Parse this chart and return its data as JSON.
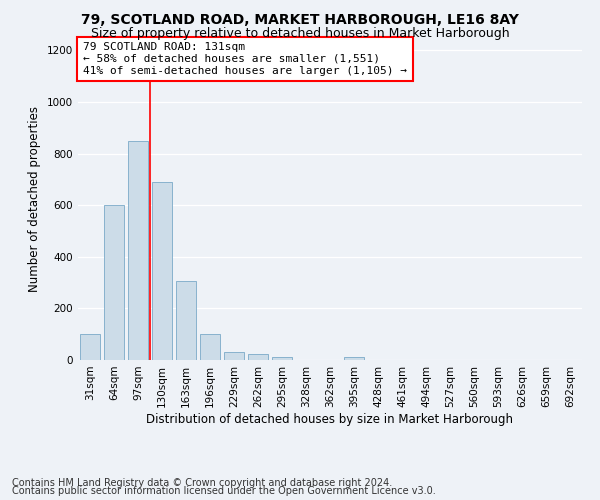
{
  "title": "79, SCOTLAND ROAD, MARKET HARBOROUGH, LE16 8AY",
  "subtitle": "Size of property relative to detached houses in Market Harborough",
  "xlabel": "Distribution of detached houses by size in Market Harborough",
  "ylabel": "Number of detached properties",
  "categories": [
    "31sqm",
    "64sqm",
    "97sqm",
    "130sqm",
    "163sqm",
    "196sqm",
    "229sqm",
    "262sqm",
    "295sqm",
    "328sqm",
    "362sqm",
    "395sqm",
    "428sqm",
    "461sqm",
    "494sqm",
    "527sqm",
    "560sqm",
    "593sqm",
    "626sqm",
    "659sqm",
    "692sqm"
  ],
  "values": [
    100,
    600,
    850,
    690,
    305,
    100,
    30,
    22,
    10,
    0,
    0,
    13,
    0,
    0,
    0,
    0,
    0,
    0,
    0,
    0,
    0
  ],
  "bar_color": "#ccdce8",
  "bar_edge_color": "#7aaac8",
  "annotation_line1": "79 SCOTLAND ROAD: 131sqm",
  "annotation_line2": "← 58% of detached houses are smaller (1,551)",
  "annotation_line3": "41% of semi-detached houses are larger (1,105) →",
  "ylim": [
    0,
    1250
  ],
  "yticks": [
    0,
    200,
    400,
    600,
    800,
    1000,
    1200
  ],
  "footnote1": "Contains HM Land Registry data © Crown copyright and database right 2024.",
  "footnote2": "Contains public sector information licensed under the Open Government Licence v3.0.",
  "background_color": "#eef2f7",
  "plot_bg_color": "#eef2f7",
  "title_fontsize": 10,
  "subtitle_fontsize": 9,
  "axis_label_fontsize": 8.5,
  "tick_fontsize": 7.5,
  "annotation_fontsize": 8,
  "footnote_fontsize": 7
}
